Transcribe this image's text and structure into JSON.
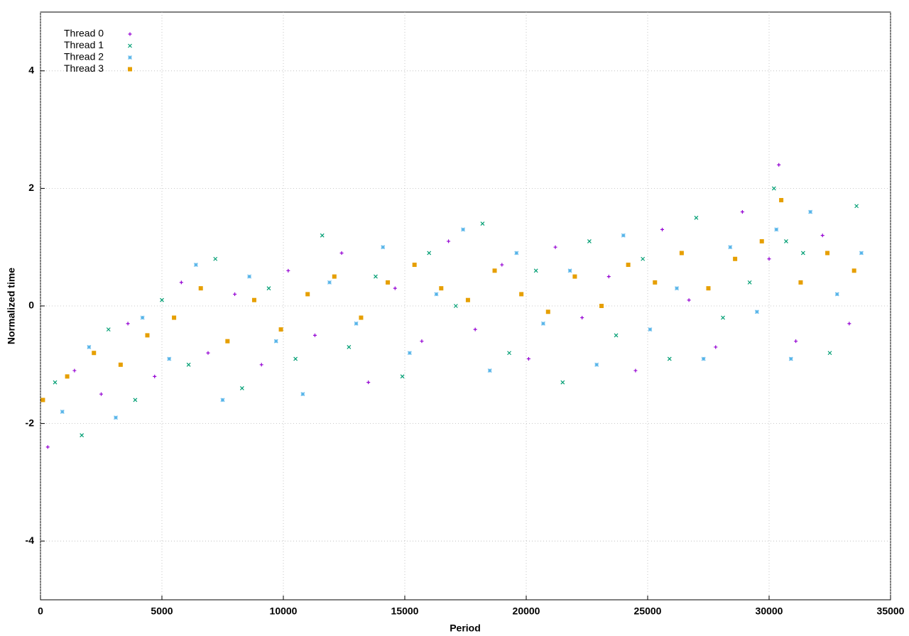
{
  "chart_data": {
    "type": "scatter",
    "xlabel": "Period",
    "ylabel": "Normalized time",
    "xlim": [
      0,
      35000
    ],
    "ylim": [
      -5,
      5
    ],
    "xticks": [
      0,
      5000,
      10000,
      15000,
      20000,
      25000,
      30000,
      35000
    ],
    "yticks": [
      -4,
      -2,
      0,
      2,
      4
    ],
    "grid": true,
    "legend": "top-left",
    "series": [
      {
        "name": "Thread 0",
        "color": "#9400d3",
        "marker": "plus",
        "x": [
          300,
          1400,
          2500,
          3600,
          4700,
          5800,
          6900,
          8000,
          9100,
          10200,
          11300,
          12400,
          13500,
          14600,
          15700,
          16800,
          17900,
          19000,
          20100,
          21200,
          22300,
          23400,
          24500,
          25600,
          26700,
          27800,
          28900,
          30000,
          30400,
          31100,
          32200,
          33300
        ],
        "values": [
          -2.4,
          -1.1,
          -1.5,
          -0.3,
          -1.2,
          0.4,
          -0.8,
          0.2,
          -1.0,
          0.6,
          -0.5,
          0.9,
          -1.3,
          0.3,
          -0.6,
          1.1,
          -0.4,
          0.7,
          -0.9,
          1.0,
          -0.2,
          0.5,
          -1.1,
          1.3,
          0.1,
          -0.7,
          1.6,
          0.8,
          2.4,
          -0.6,
          1.2,
          -0.3
        ]
      },
      {
        "name": "Thread 1",
        "color": "#009e73",
        "marker": "cross",
        "x": [
          600,
          1700,
          2800,
          3900,
          5000,
          6100,
          7200,
          8300,
          9400,
          10500,
          11600,
          12700,
          13800,
          14900,
          16000,
          17100,
          18200,
          19300,
          20400,
          21500,
          22600,
          23700,
          24800,
          25900,
          27000,
          28100,
          29200,
          30200,
          30700,
          31400,
          32500,
          33600
        ],
        "values": [
          -1.3,
          -2.2,
          -0.4,
          -1.6,
          0.1,
          -1.0,
          0.8,
          -1.4,
          0.3,
          -0.9,
          1.2,
          -0.7,
          0.5,
          -1.2,
          0.9,
          0.0,
          1.4,
          -0.8,
          0.6,
          -1.3,
          1.1,
          -0.5,
          0.8,
          -0.9,
          1.5,
          -0.2,
          0.4,
          2.0,
          1.1,
          0.9,
          -0.8,
          1.7
        ]
      },
      {
        "name": "Thread 2",
        "color": "#56b4e9",
        "marker": "star",
        "x": [
          900,
          2000,
          3100,
          4200,
          5300,
          6400,
          7500,
          8600,
          9700,
          10800,
          11900,
          13000,
          14100,
          15200,
          16300,
          17400,
          18500,
          19600,
          20700,
          21800,
          22900,
          24000,
          25100,
          26200,
          27300,
          28400,
          29500,
          30300,
          30900,
          31700,
          32800,
          33800
        ],
        "values": [
          -1.8,
          -0.7,
          -1.9,
          -0.2,
          -0.9,
          0.7,
          -1.6,
          0.5,
          -0.6,
          -1.5,
          0.4,
          -0.3,
          1.0,
          -0.8,
          0.2,
          1.3,
          -1.1,
          0.9,
          -0.3,
          0.6,
          -1.0,
          1.2,
          -0.4,
          0.3,
          -0.9,
          1.0,
          -0.1,
          1.3,
          -0.9,
          1.6,
          0.2,
          0.9
        ]
      },
      {
        "name": "Thread 3",
        "color": "#e69f00",
        "marker": "square",
        "x": [
          100,
          1100,
          2200,
          3300,
          4400,
          5500,
          6600,
          7700,
          8800,
          9900,
          11000,
          12100,
          13200,
          14300,
          15400,
          16500,
          17600,
          18700,
          19800,
          20900,
          22000,
          23100,
          24200,
          25300,
          26400,
          27500,
          28600,
          29700,
          30500,
          31300,
          32400,
          33500
        ],
        "values": [
          -1.6,
          -1.2,
          -0.8,
          -1.0,
          -0.5,
          -0.2,
          0.3,
          -0.6,
          0.1,
          -0.4,
          0.2,
          0.5,
          -0.2,
          0.4,
          0.7,
          0.3,
          0.1,
          0.6,
          0.2,
          -0.1,
          0.5,
          0.0,
          0.7,
          0.4,
          0.9,
          0.3,
          0.8,
          1.1,
          1.8,
          0.4,
          0.9,
          0.6
        ]
      }
    ]
  }
}
